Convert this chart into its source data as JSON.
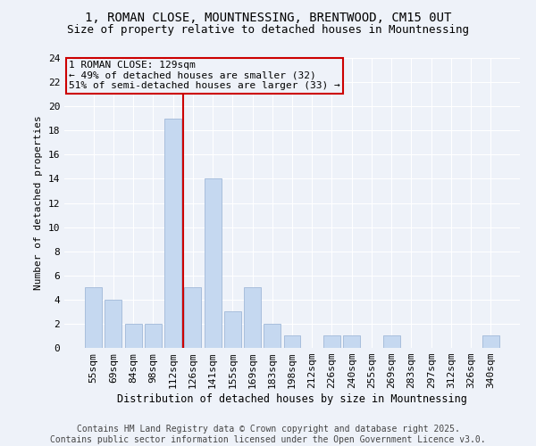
{
  "title_line1": "1, ROMAN CLOSE, MOUNTNESSING, BRENTWOOD, CM15 0UT",
  "title_line2": "Size of property relative to detached houses in Mountnessing",
  "xlabel": "Distribution of detached houses by size in Mountnessing",
  "ylabel": "Number of detached properties",
  "categories": [
    "55sqm",
    "69sqm",
    "84sqm",
    "98sqm",
    "112sqm",
    "126sqm",
    "141sqm",
    "155sqm",
    "169sqm",
    "183sqm",
    "198sqm",
    "212sqm",
    "226sqm",
    "240sqm",
    "255sqm",
    "269sqm",
    "283sqm",
    "297sqm",
    "312sqm",
    "326sqm",
    "340sqm"
  ],
  "values": [
    5,
    4,
    2,
    2,
    19,
    5,
    14,
    3,
    5,
    2,
    1,
    0,
    1,
    1,
    0,
    1,
    0,
    0,
    0,
    0,
    1
  ],
  "bar_color": "#c5d8f0",
  "bar_edge_color": "#a0b8d8",
  "vline_index": 5,
  "vline_color": "#cc0000",
  "annotation_box_text": "1 ROMAN CLOSE: 129sqm\n← 49% of detached houses are smaller (32)\n51% of semi-detached houses are larger (33) →",
  "ylim": [
    0,
    24
  ],
  "yticks": [
    0,
    2,
    4,
    6,
    8,
    10,
    12,
    14,
    16,
    18,
    20,
    22,
    24
  ],
  "footer_text": "Contains HM Land Registry data © Crown copyright and database right 2025.\nContains public sector information licensed under the Open Government Licence v3.0.",
  "bg_color": "#eef2f9",
  "grid_color": "#ffffff",
  "title_fontsize": 10,
  "subtitle_fontsize": 9,
  "annotation_fontsize": 8,
  "footer_fontsize": 7,
  "axis_fontsize": 8,
  "ylabel_fontsize": 8,
  "xlabel_fontsize": 8.5
}
